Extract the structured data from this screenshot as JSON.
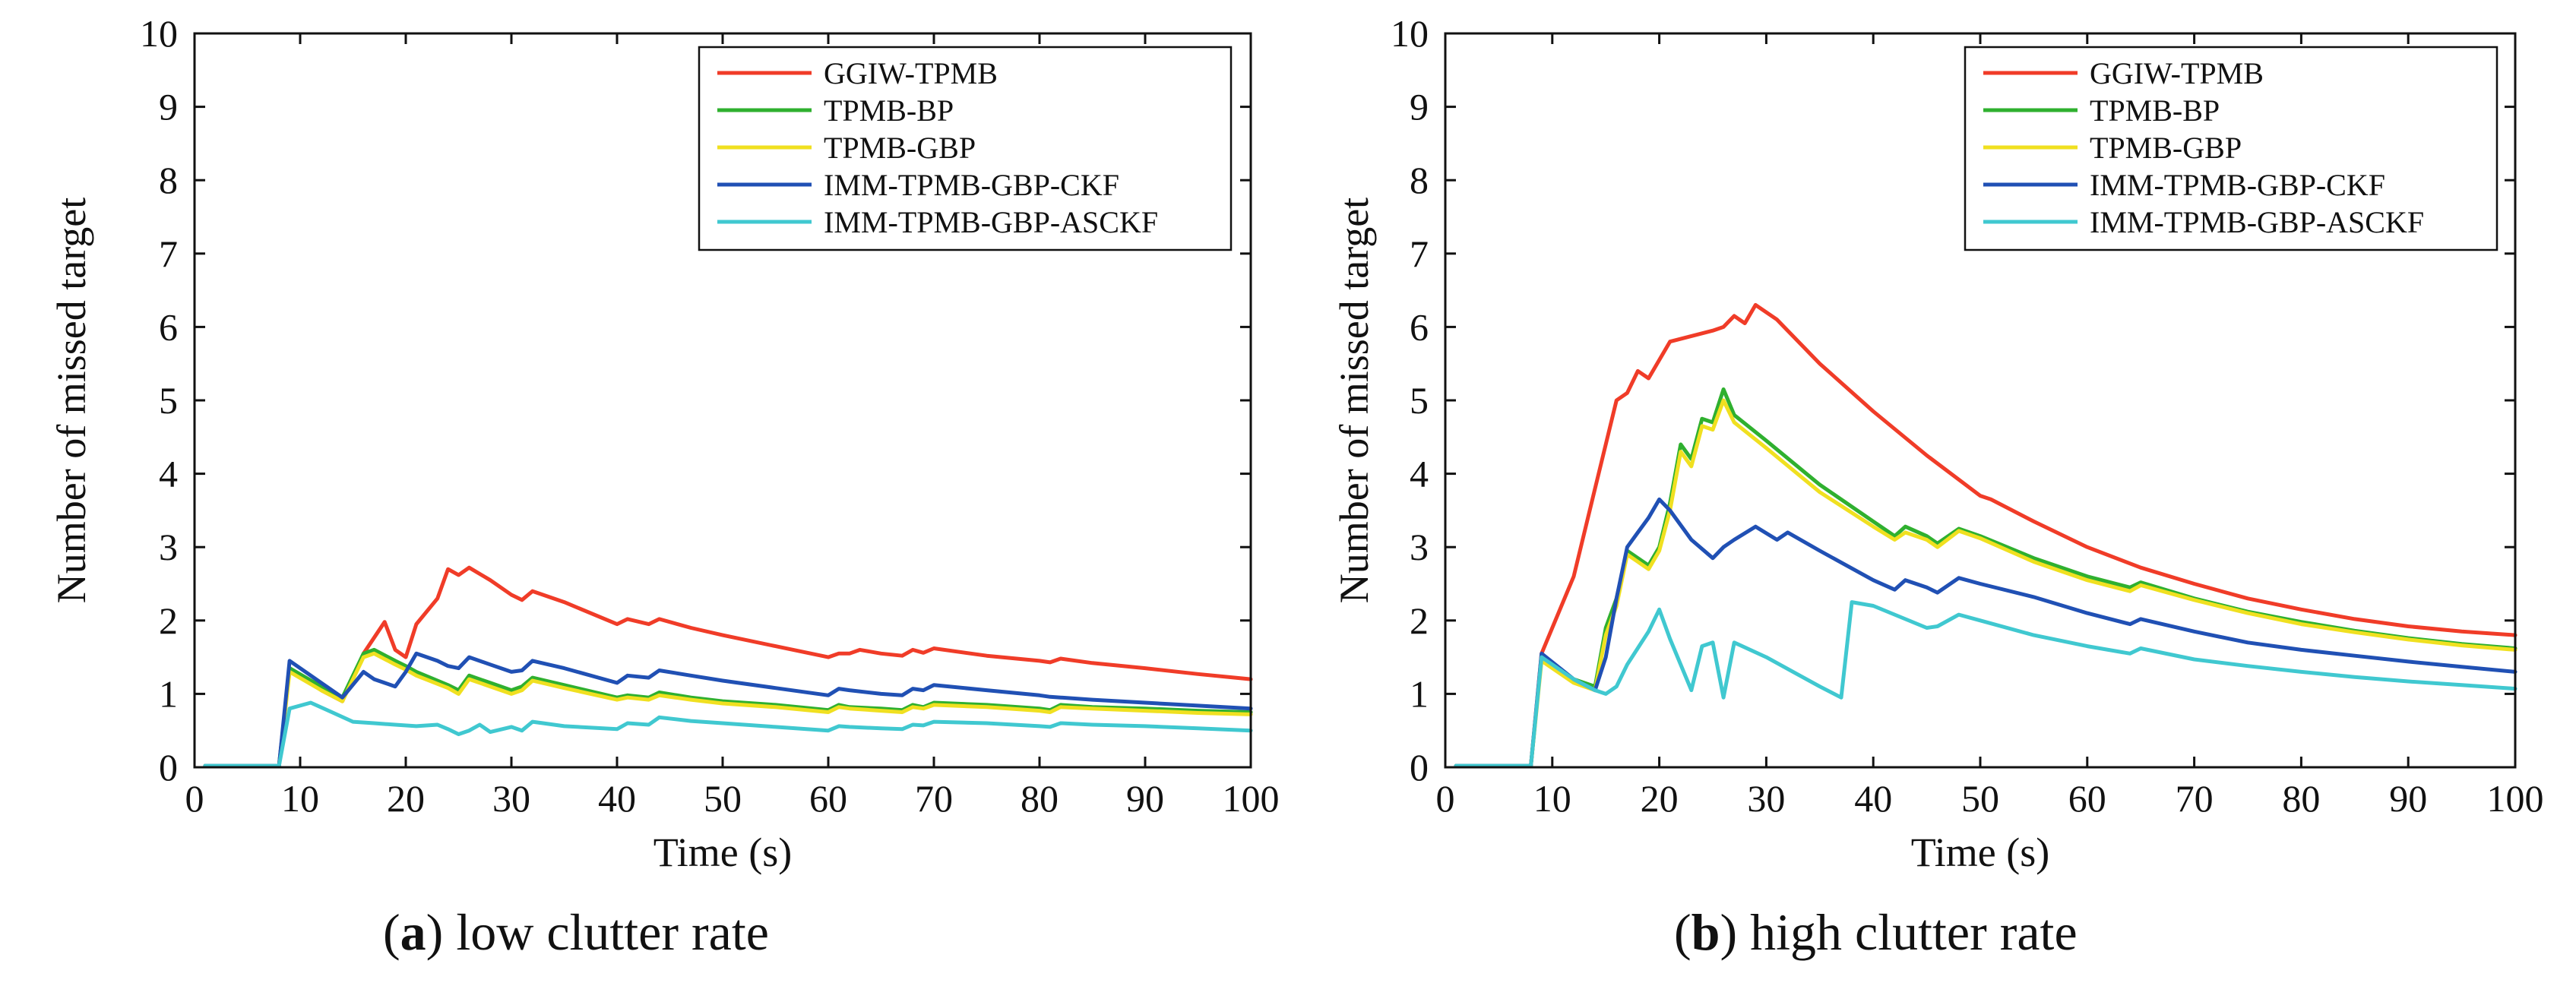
{
  "chart_data": [
    {
      "type": "line",
      "panel": "a",
      "caption_letter": "a",
      "caption_text": " low clutter rate",
      "xlabel": "Time (s)",
      "ylabel": "Number of missed target",
      "xlim": [
        0,
        100
      ],
      "ylim": [
        0,
        10
      ],
      "xticks": [
        0,
        10,
        20,
        30,
        40,
        50,
        60,
        70,
        80,
        90,
        100
      ],
      "yticks": [
        0,
        1,
        2,
        3,
        4,
        5,
        6,
        7,
        8,
        9,
        10
      ],
      "grid": false,
      "legend_position": "top-right",
      "series": [
        {
          "name": "GGIW-TPMB",
          "color": "#f03c28",
          "x": [
            1,
            8,
            9,
            12,
            14,
            16,
            18,
            19,
            20,
            21,
            23,
            24,
            25,
            26,
            28,
            30,
            31,
            32,
            35,
            40,
            41,
            43,
            44,
            47,
            50,
            55,
            60,
            61,
            62,
            63,
            65,
            67,
            68,
            69,
            70,
            75,
            80,
            81,
            82,
            85,
            90,
            95,
            100
          ],
          "y": [
            0.02,
            0.02,
            1.35,
            1.05,
            0.9,
            1.55,
            1.98,
            1.6,
            1.5,
            1.95,
            2.3,
            2.7,
            2.62,
            2.72,
            2.55,
            2.35,
            2.28,
            2.4,
            2.25,
            1.95,
            2.02,
            1.95,
            2.02,
            1.9,
            1.8,
            1.65,
            1.5,
            1.55,
            1.55,
            1.6,
            1.55,
            1.52,
            1.6,
            1.56,
            1.62,
            1.52,
            1.45,
            1.43,
            1.48,
            1.42,
            1.35,
            1.27,
            1.2
          ]
        },
        {
          "name": "TPMB-BP",
          "color": "#2fb02f",
          "x": [
            1,
            8,
            9,
            12,
            14,
            16,
            17,
            19,
            20,
            21,
            24,
            25,
            26,
            28,
            30,
            31,
            32,
            35,
            40,
            41,
            43,
            44,
            47,
            50,
            55,
            60,
            61,
            62,
            65,
            67,
            68,
            69,
            70,
            75,
            80,
            81,
            82,
            85,
            90,
            95,
            100
          ],
          "y": [
            0.02,
            0.02,
            1.35,
            1.1,
            0.95,
            1.55,
            1.6,
            1.45,
            1.38,
            1.3,
            1.12,
            1.05,
            1.25,
            1.15,
            1.05,
            1.1,
            1.22,
            1.12,
            0.95,
            0.98,
            0.95,
            1.02,
            0.95,
            0.9,
            0.85,
            0.78,
            0.85,
            0.82,
            0.8,
            0.78,
            0.85,
            0.82,
            0.88,
            0.85,
            0.8,
            0.78,
            0.85,
            0.82,
            0.8,
            0.77,
            0.75
          ]
        },
        {
          "name": "TPMB-GBP",
          "color": "#f0e020",
          "x": [
            1,
            8,
            9,
            12,
            14,
            16,
            17,
            19,
            20,
            21,
            24,
            25,
            26,
            28,
            30,
            31,
            32,
            35,
            40,
            41,
            43,
            44,
            47,
            50,
            55,
            60,
            61,
            62,
            65,
            67,
            68,
            69,
            70,
            75,
            80,
            81,
            82,
            85,
            90,
            95,
            100
          ],
          "y": [
            0.02,
            0.02,
            1.3,
            1.05,
            0.9,
            1.5,
            1.55,
            1.4,
            1.33,
            1.25,
            1.08,
            1.0,
            1.2,
            1.1,
            1.0,
            1.05,
            1.18,
            1.08,
            0.92,
            0.95,
            0.92,
            0.98,
            0.92,
            0.87,
            0.82,
            0.75,
            0.82,
            0.8,
            0.77,
            0.75,
            0.82,
            0.8,
            0.85,
            0.82,
            0.77,
            0.75,
            0.82,
            0.8,
            0.77,
            0.74,
            0.72
          ]
        },
        {
          "name": "IMM-TPMB-GBP-CKF",
          "color": "#2050b4",
          "x": [
            1,
            8,
            9,
            12,
            14,
            16,
            17,
            18,
            19,
            20,
            21,
            23,
            24,
            25,
            26,
            28,
            30,
            31,
            32,
            35,
            40,
            41,
            43,
            44,
            47,
            50,
            55,
            60,
            61,
            62,
            65,
            67,
            68,
            69,
            70,
            75,
            80,
            81,
            82,
            85,
            90,
            95,
            100
          ],
          "y": [
            0.02,
            0.02,
            1.45,
            1.15,
            0.95,
            1.3,
            1.2,
            1.15,
            1.1,
            1.3,
            1.55,
            1.45,
            1.38,
            1.35,
            1.5,
            1.4,
            1.3,
            1.32,
            1.45,
            1.35,
            1.15,
            1.25,
            1.22,
            1.32,
            1.25,
            1.18,
            1.08,
            0.98,
            1.07,
            1.05,
            1.0,
            0.98,
            1.07,
            1.05,
            1.12,
            1.05,
            0.98,
            0.96,
            0.95,
            0.92,
            0.88,
            0.84,
            0.8
          ]
        },
        {
          "name": "IMM-TPMB-GBP-ASCKF",
          "color": "#40c8d0",
          "x": [
            1,
            8,
            9,
            11,
            13,
            15,
            17,
            19,
            21,
            23,
            24,
            25,
            26,
            27,
            28,
            30,
            31,
            32,
            33,
            35,
            40,
            41,
            43,
            44,
            47,
            50,
            55,
            60,
            61,
            62,
            65,
            67,
            68,
            69,
            70,
            75,
            80,
            81,
            82,
            85,
            90,
            95,
            100
          ],
          "y": [
            0.02,
            0.02,
            0.8,
            0.88,
            0.75,
            0.62,
            0.6,
            0.58,
            0.56,
            0.58,
            0.52,
            0.45,
            0.5,
            0.58,
            0.48,
            0.55,
            0.5,
            0.62,
            0.6,
            0.56,
            0.52,
            0.6,
            0.58,
            0.68,
            0.63,
            0.6,
            0.55,
            0.5,
            0.56,
            0.55,
            0.53,
            0.52,
            0.58,
            0.57,
            0.62,
            0.6,
            0.56,
            0.55,
            0.6,
            0.58,
            0.56,
            0.53,
            0.5
          ]
        }
      ]
    },
    {
      "type": "line",
      "panel": "b",
      "caption_letter": "b",
      "caption_text": " high clutter rate",
      "xlabel": "Time (s)",
      "ylabel": "Number of missed target",
      "xlim": [
        0,
        100
      ],
      "ylim": [
        0,
        10
      ],
      "xticks": [
        0,
        10,
        20,
        30,
        40,
        50,
        60,
        70,
        80,
        90,
        100
      ],
      "yticks": [
        0,
        1,
        2,
        3,
        4,
        5,
        6,
        7,
        8,
        9,
        10
      ],
      "grid": false,
      "legend_position": "top-right",
      "series": [
        {
          "name": "GGIW-TPMB",
          "color": "#f03c28",
          "x": [
            1,
            8,
            9,
            12,
            14,
            16,
            17,
            18,
            19,
            20,
            21,
            25,
            26,
            27,
            28,
            29,
            30,
            31,
            35,
            40,
            45,
            50,
            51,
            55,
            60,
            65,
            70,
            75,
            80,
            85,
            90,
            95,
            100
          ],
          "y": [
            0.02,
            0.02,
            1.55,
            2.6,
            3.8,
            5.0,
            5.1,
            5.4,
            5.3,
            5.55,
            5.8,
            5.95,
            6.0,
            6.15,
            6.05,
            6.3,
            6.2,
            6.1,
            5.5,
            4.85,
            4.25,
            3.7,
            3.65,
            3.35,
            3.0,
            2.72,
            2.5,
            2.3,
            2.15,
            2.02,
            1.92,
            1.85,
            1.8
          ]
        },
        {
          "name": "TPMB-BP",
          "color": "#2fb02f",
          "x": [
            1,
            8,
            9,
            12,
            14,
            15,
            16,
            17,
            18,
            19,
            20,
            21,
            22,
            23,
            24,
            25,
            26,
            27,
            30,
            35,
            40,
            42,
            43,
            45,
            46,
            48,
            50,
            55,
            60,
            64,
            65,
            70,
            75,
            80,
            85,
            90,
            95,
            100
          ],
          "y": [
            0.02,
            0.02,
            1.5,
            1.2,
            1.1,
            1.9,
            2.3,
            2.95,
            2.85,
            2.75,
            3.0,
            3.6,
            4.4,
            4.2,
            4.75,
            4.7,
            5.15,
            4.8,
            4.45,
            3.85,
            3.35,
            3.15,
            3.28,
            3.15,
            3.05,
            3.25,
            3.15,
            2.85,
            2.6,
            2.45,
            2.52,
            2.3,
            2.12,
            1.98,
            1.86,
            1.76,
            1.68,
            1.62
          ]
        },
        {
          "name": "TPMB-GBP",
          "color": "#f0e020",
          "x": [
            1,
            8,
            9,
            12,
            14,
            15,
            16,
            17,
            18,
            19,
            20,
            21,
            22,
            23,
            24,
            25,
            26,
            27,
            30,
            35,
            40,
            42,
            43,
            45,
            46,
            48,
            50,
            55,
            60,
            64,
            65,
            70,
            75,
            80,
            85,
            90,
            95,
            100
          ],
          "y": [
            0.02,
            0.02,
            1.45,
            1.15,
            1.05,
            1.8,
            2.2,
            2.9,
            2.8,
            2.7,
            2.95,
            3.5,
            4.3,
            4.1,
            4.65,
            4.6,
            5.0,
            4.7,
            4.35,
            3.75,
            3.28,
            3.1,
            3.2,
            3.1,
            3.0,
            3.22,
            3.12,
            2.8,
            2.55,
            2.4,
            2.48,
            2.28,
            2.1,
            1.95,
            1.84,
            1.74,
            1.66,
            1.6
          ]
        },
        {
          "name": "IMM-TPMB-GBP-CKF",
          "color": "#2050b4",
          "x": [
            1,
            8,
            9,
            12,
            14,
            15,
            16,
            17,
            18,
            19,
            20,
            21,
            23,
            25,
            26,
            27,
            29,
            31,
            32,
            35,
            40,
            42,
            43,
            45,
            46,
            48,
            50,
            55,
            60,
            64,
            65,
            70,
            75,
            80,
            85,
            90,
            95,
            100
          ],
          "y": [
            0.02,
            0.02,
            1.55,
            1.2,
            1.05,
            1.5,
            2.3,
            3.0,
            3.2,
            3.4,
            3.65,
            3.5,
            3.1,
            2.85,
            3.0,
            3.1,
            3.28,
            3.1,
            3.2,
            2.95,
            2.55,
            2.42,
            2.55,
            2.45,
            2.38,
            2.58,
            2.5,
            2.32,
            2.1,
            1.95,
            2.02,
            1.85,
            1.7,
            1.6,
            1.52,
            1.44,
            1.37,
            1.3
          ]
        },
        {
          "name": "IMM-TPMB-GBP-ASCKF",
          "color": "#40c8d0",
          "x": [
            1,
            8,
            9,
            12,
            14,
            15,
            16,
            17,
            19,
            20,
            21,
            23,
            24,
            25,
            26,
            27,
            30,
            35,
            37,
            38,
            40,
            45,
            46,
            48,
            50,
            55,
            60,
            64,
            65,
            70,
            75,
            80,
            85,
            90,
            95,
            100
          ],
          "y": [
            0.02,
            0.02,
            1.5,
            1.2,
            1.05,
            1.0,
            1.1,
            1.4,
            1.85,
            2.15,
            1.75,
            1.05,
            1.65,
            1.7,
            0.95,
            1.7,
            1.5,
            1.1,
            0.95,
            2.25,
            2.2,
            1.9,
            1.92,
            2.08,
            2.0,
            1.8,
            1.65,
            1.55,
            1.62,
            1.47,
            1.38,
            1.3,
            1.23,
            1.17,
            1.12,
            1.07
          ]
        }
      ]
    }
  ]
}
